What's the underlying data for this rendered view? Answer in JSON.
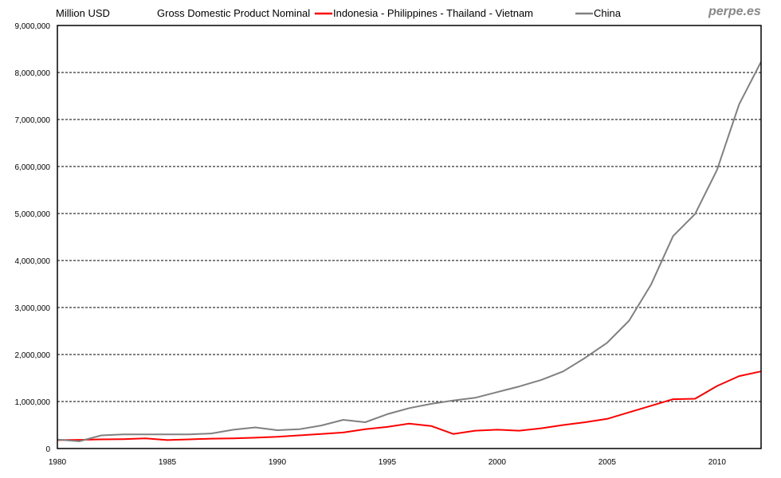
{
  "chart_data": {
    "type": "line",
    "title": "Gross Domestic Product Nominal",
    "ylabel": "Million USD",
    "xlabel": "",
    "brand": "perpe.es",
    "ylim": [
      0,
      9000000
    ],
    "xlim": [
      1980,
      2012
    ],
    "grid": true,
    "legend_placement": "top",
    "y_ticks": [
      "0",
      "1,000,000",
      "2,000,000",
      "3,000,000",
      "4,000,000",
      "5,000,000",
      "6,000,000",
      "7,000,000",
      "8,000,000",
      "9,000,000"
    ],
    "x_ticks": [
      "1980",
      "1985",
      "1990",
      "1995",
      "2000",
      "2005",
      "2010"
    ],
    "x": [
      1980,
      1981,
      1982,
      1983,
      1984,
      1985,
      1986,
      1987,
      1988,
      1989,
      1990,
      1991,
      1992,
      1993,
      1994,
      1995,
      1996,
      1997,
      1998,
      1999,
      2000,
      2001,
      2002,
      2003,
      2004,
      2005,
      2006,
      2007,
      2008,
      2009,
      2010,
      2011,
      2012
    ],
    "series": [
      {
        "name": "Indonesia - Philippines - Thailand - Vietnam",
        "color": "#ff0000",
        "values": [
          180000,
          185000,
          195000,
          200000,
          215000,
          180000,
          195000,
          210000,
          215000,
          230000,
          250000,
          280000,
          310000,
          340000,
          410000,
          460000,
          530000,
          480000,
          310000,
          380000,
          400000,
          380000,
          430000,
          500000,
          560000,
          630000,
          770000,
          910000,
          1050000,
          1060000,
          1330000,
          1540000,
          1640000
        ]
      },
      {
        "name": "China",
        "color": "#808080",
        "values": [
          190000,
          155000,
          280000,
          300000,
          300000,
          300000,
          300000,
          320000,
          400000,
          450000,
          390000,
          410000,
          490000,
          610000,
          560000,
          730000,
          860000,
          950000,
          1020000,
          1080000,
          1200000,
          1320000,
          1460000,
          1640000,
          1930000,
          2250000,
          2720000,
          3490000,
          4520000,
          4990000,
          5930000,
          7320000,
          8230000
        ]
      }
    ]
  }
}
